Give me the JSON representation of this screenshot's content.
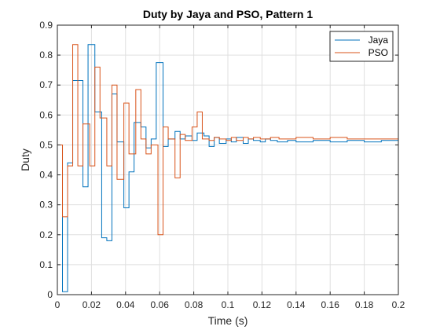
{
  "chart_data": {
    "type": "line",
    "step": true,
    "title": "Duty by Jaya and PSO, Pattern 1",
    "xlabel": "Time (s)",
    "ylabel": "Duty",
    "xlim": [
      0,
      0.2
    ],
    "ylim": [
      0,
      0.9
    ],
    "xticks": [
      "0",
      "0.02",
      "0.04",
      "0.06",
      "0.08",
      "0.1",
      "0.12",
      "0.14",
      "0.16",
      "0.18",
      "0.2"
    ],
    "yticks": [
      "0",
      "0.1",
      "0.2",
      "0.3",
      "0.4",
      "0.5",
      "0.6",
      "0.7",
      "0.8",
      "0.9"
    ],
    "grid": true,
    "legend_position": "top-right",
    "series": [
      {
        "name": "Jaya",
        "color": "#0072BD",
        "x": [
          0,
          0.003,
          0.006,
          0.009,
          0.015,
          0.018,
          0.022,
          0.026,
          0.029,
          0.032,
          0.035,
          0.039,
          0.042,
          0.045,
          0.049,
          0.052,
          0.055,
          0.058,
          0.062,
          0.065,
          0.069,
          0.072,
          0.075,
          0.079,
          0.082,
          0.086,
          0.089,
          0.092,
          0.095,
          0.099,
          0.102,
          0.105,
          0.109,
          0.112,
          0.115,
          0.119,
          0.122,
          0.125,
          0.129,
          0.135,
          0.14,
          0.15,
          0.16,
          0.17,
          0.18,
          0.19,
          0.2
        ],
        "values": [
          0.5,
          0.01,
          0.44,
          0.715,
          0.36,
          0.835,
          0.61,
          0.19,
          0.18,
          0.67,
          0.51,
          0.29,
          0.41,
          0.575,
          0.56,
          0.49,
          0.52,
          0.775,
          0.495,
          0.52,
          0.545,
          0.52,
          0.53,
          0.515,
          0.54,
          0.53,
          0.495,
          0.525,
          0.505,
          0.52,
          0.51,
          0.525,
          0.505,
          0.52,
          0.515,
          0.51,
          0.52,
          0.515,
          0.51,
          0.515,
          0.51,
          0.515,
          0.51,
          0.515,
          0.51,
          0.515,
          0.51
        ]
      },
      {
        "name": "PSO",
        "color": "#D95319",
        "x": [
          0,
          0.003,
          0.006,
          0.009,
          0.012,
          0.015,
          0.019,
          0.022,
          0.025,
          0.029,
          0.032,
          0.035,
          0.039,
          0.042,
          0.046,
          0.049,
          0.052,
          0.055,
          0.059,
          0.062,
          0.065,
          0.069,
          0.072,
          0.075,
          0.079,
          0.082,
          0.085,
          0.089,
          0.092,
          0.095,
          0.099,
          0.102,
          0.105,
          0.109,
          0.112,
          0.115,
          0.119,
          0.125,
          0.13,
          0.14,
          0.15,
          0.16,
          0.17,
          0.18,
          0.19,
          0.2
        ],
        "values": [
          0.5,
          0.26,
          0.43,
          0.835,
          0.43,
          0.57,
          0.43,
          0.76,
          0.59,
          0.43,
          0.7,
          0.385,
          0.64,
          0.47,
          0.685,
          0.52,
          0.47,
          0.5,
          0.2,
          0.56,
          0.52,
          0.39,
          0.535,
          0.515,
          0.56,
          0.61,
          0.52,
          0.515,
          0.525,
          0.52,
          0.515,
          0.525,
          0.515,
          0.525,
          0.52,
          0.525,
          0.52,
          0.525,
          0.52,
          0.525,
          0.52,
          0.525,
          0.52,
          0.52,
          0.52,
          0.52
        ]
      }
    ]
  }
}
